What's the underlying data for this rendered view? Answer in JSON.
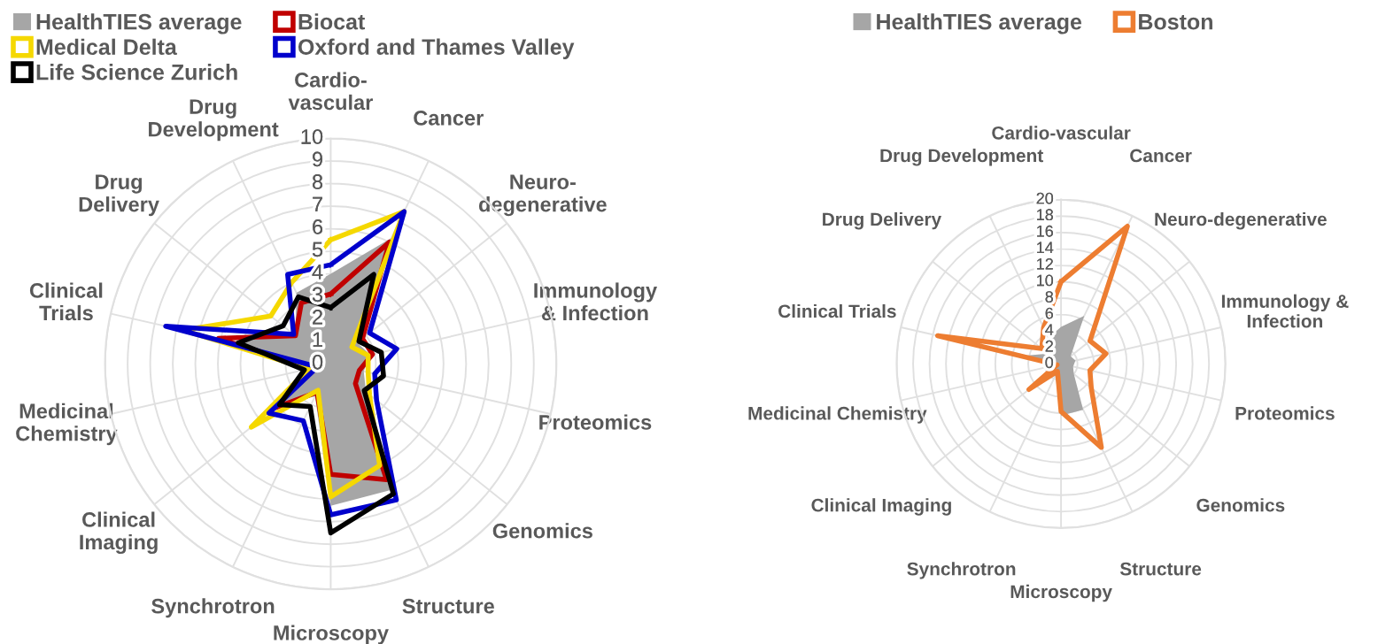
{
  "chart_data": [
    {
      "type": "radar",
      "categories": [
        "Cardio-\nvascular",
        "Cancer",
        "Neuro-\ndegenerative",
        "Immunology\n& Infection",
        "Proteomics",
        "Genomics",
        "Structure",
        "Microscopy",
        "Synchrotron",
        "Clinical\nImaging",
        "Medicinal\nChemistry",
        "Clinical\nTrials",
        "Drug\nDelivery",
        "Drug\nDevelopment"
      ],
      "ylim": [
        0,
        10
      ],
      "yticks": [
        0,
        1,
        2,
        3,
        4,
        5,
        6,
        7,
        8,
        9,
        10
      ],
      "grid": true,
      "legend": "top left",
      "series": [
        {
          "name": "HealthTIES average",
          "type": "area",
          "color": "#a6a6a6",
          "values": [
            4,
            6.2,
            1.5,
            1.8,
            1.5,
            2,
            6.2,
            6.3,
            1.6,
            3,
            1,
            4.5,
            2,
            3.5
          ]
        },
        {
          "name": "Biocat",
          "color": "#c00000",
          "values": [
            3.1,
            6,
            1.8,
            1.9,
            1.3,
            1.4,
            5.7,
            4.9,
            1.4,
            3.1,
            1,
            5.1,
            2,
            3
          ]
        },
        {
          "name": "Medical Delta",
          "color": "#f5d800",
          "values": [
            5.5,
            7.5,
            1.2,
            1.7,
            1.7,
            2.2,
            5,
            5.9,
            1.3,
            4.5,
            1,
            6.7,
            3.4,
            4
          ]
        },
        {
          "name": "Oxford and Thames Valley",
          "color": "#0000cc",
          "values": [
            4.4,
            7.5,
            2.2,
            3,
            2,
            2.6,
            6.7,
            6.7,
            2.8,
            3.5,
            0.6,
            7.5,
            2.1,
            4.4
          ]
        },
        {
          "name": "Life Science Zurich",
          "color": "#000000",
          "values": [
            2.5,
            4.4,
            1.6,
            2.3,
            2.4,
            1.9,
            6.4,
            7.5,
            2.1,
            2.9,
            1.2,
            4.2,
            2.7,
            3.3
          ]
        }
      ]
    },
    {
      "type": "radar",
      "categories": [
        "Cardio-vascular",
        "Cancer",
        "Neuro-degenerative",
        "Immunology &\nInfection",
        "Proteomics",
        "Genomics",
        "Structure",
        "Microscopy",
        "Synchrotron",
        "Clinical Imaging",
        "Medicinal Chemistry",
        "Clinical Trials",
        "Drug Delivery",
        "Drug Development"
      ],
      "ylim": [
        0,
        20
      ],
      "yticks": [
        0,
        2,
        4,
        6,
        8,
        10,
        12,
        14,
        16,
        18,
        20
      ],
      "grid": true,
      "legend": "top",
      "series": [
        {
          "name": "HealthTIES average",
          "type": "area",
          "color": "#a6a6a6",
          "values": [
            4.5,
            6.5,
            1.5,
            1.8,
            1.5,
            2,
            6.2,
            6.3,
            1.6,
            3,
            1,
            4.5,
            2,
            3.5
          ]
        },
        {
          "name": "Boston",
          "color": "#ed7d31",
          "values": [
            10,
            18.6,
            4.5,
            5.6,
            3.6,
            4.7,
            11.3,
            5.8,
            1,
            5,
            0.5,
            15.4,
            3,
            4.9
          ]
        }
      ]
    }
  ]
}
